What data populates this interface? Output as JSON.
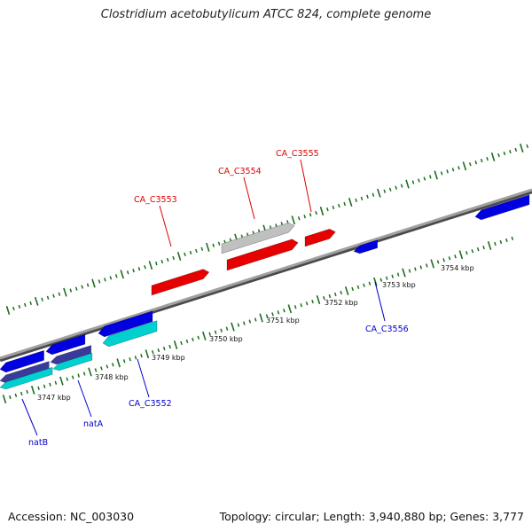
{
  "title": "Clostridium acetobutylicum ATCC 824, complete genome",
  "footer": {
    "accession": "Accession: NC_003030",
    "topology": "Topology: circular; Length: 3,940,880 bp; Genes: 3,777"
  },
  "colors": {
    "backbone": "#888888",
    "tick": "#1e6e1e",
    "forward_cds": "#e60000",
    "forward_other": "#c0c0c0",
    "reverse_cds": "#0000e0",
    "reverse_other": "#00d0d0",
    "reverse_dark": "#3a3a9a",
    "label_forward": "#dd0000",
    "label_reverse": "#0000cc"
  },
  "scale_labels": [
    "3747 kbp",
    "3748 kbp",
    "3749 kbp",
    "3750 kbp",
    "3751 kbp",
    "3752 kbp",
    "3753 kbp",
    "3754 kbp"
  ],
  "gene_labels": [
    {
      "text": "CA_C3553",
      "strand": "forward"
    },
    {
      "text": "CA_C3554",
      "strand": "forward"
    },
    {
      "text": "CA_C3555",
      "strand": "forward"
    },
    {
      "text": "natB",
      "strand": "reverse"
    },
    {
      "text": "natA",
      "strand": "reverse"
    },
    {
      "text": "CA_C3552",
      "strand": "reverse"
    },
    {
      "text": "CA_C3556",
      "strand": "reverse"
    }
  ]
}
